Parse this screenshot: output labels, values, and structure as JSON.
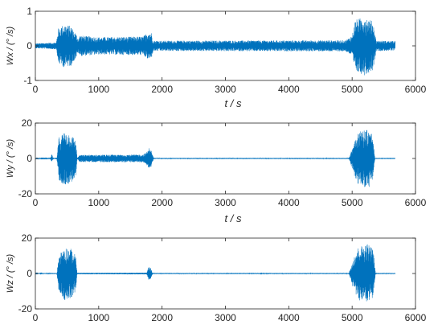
{
  "chart_data": [
    {
      "type": "line",
      "ylabel": "Wx / (° /s)",
      "xlabel": "t / s",
      "xlim": [
        0,
        6000
      ],
      "ylim": [
        -1,
        1
      ],
      "xticks": [
        0,
        1000,
        2000,
        3000,
        4000,
        5000,
        6000
      ],
      "yticks": [
        -1,
        0,
        1
      ],
      "grid": false,
      "series": [
        {
          "color": "#0072BD",
          "envelope": [
            {
              "t": 0,
              "amp": 0.07
            },
            {
              "t": 330,
              "amp": 0.1
            },
            {
              "t": 360,
              "amp": 0.5
            },
            {
              "t": 450,
              "amp": 0.62
            },
            {
              "t": 560,
              "amp": 0.58
            },
            {
              "t": 640,
              "amp": 0.35
            },
            {
              "t": 680,
              "amp": 0.2
            },
            {
              "t": 700,
              "amp": 0.3
            },
            {
              "t": 1000,
              "amp": 0.25
            },
            {
              "t": 1700,
              "amp": 0.27
            },
            {
              "t": 1780,
              "amp": 0.4
            },
            {
              "t": 1830,
              "amp": 0.38
            },
            {
              "t": 1860,
              "amp": 0.15
            },
            {
              "t": 2500,
              "amp": 0.15
            },
            {
              "t": 4900,
              "amp": 0.16
            },
            {
              "t": 5000,
              "amp": 0.3
            },
            {
              "t": 5050,
              "amp": 0.75
            },
            {
              "t": 5200,
              "amp": 0.85
            },
            {
              "t": 5330,
              "amp": 0.7
            },
            {
              "t": 5380,
              "amp": 0.15
            },
            {
              "t": 5680,
              "amp": 0.14
            }
          ]
        }
      ]
    },
    {
      "type": "line",
      "ylabel": "Wy / (° /s)",
      "xlabel": "t / s",
      "xlim": [
        0,
        6000
      ],
      "ylim": [
        -20,
        20
      ],
      "xticks": [
        0,
        1000,
        2000,
        3000,
        4000,
        5000,
        6000
      ],
      "yticks": [
        -20,
        0,
        20
      ],
      "grid": false,
      "series": [
        {
          "color": "#0072BD",
          "envelope": [
            {
              "t": 0,
              "amp": 0.2
            },
            {
              "t": 240,
              "amp": 0.2
            },
            {
              "t": 260,
              "amp": 2.5
            },
            {
              "t": 280,
              "amp": 0.2
            },
            {
              "t": 340,
              "amp": 0.5
            },
            {
              "t": 370,
              "amp": 12
            },
            {
              "t": 450,
              "amp": 15
            },
            {
              "t": 560,
              "amp": 14
            },
            {
              "t": 640,
              "amp": 10
            },
            {
              "t": 660,
              "amp": 0.3
            },
            {
              "t": 700,
              "amp": 2
            },
            {
              "t": 1700,
              "amp": 2.2
            },
            {
              "t": 1770,
              "amp": 4
            },
            {
              "t": 1810,
              "amp": 7
            },
            {
              "t": 1840,
              "amp": 3
            },
            {
              "t": 1870,
              "amp": 0.3
            },
            {
              "t": 4950,
              "amp": 0.3
            },
            {
              "t": 5020,
              "amp": 8
            },
            {
              "t": 5080,
              "amp": 15
            },
            {
              "t": 5250,
              "amp": 17
            },
            {
              "t": 5320,
              "amp": 14
            },
            {
              "t": 5360,
              "amp": 0.3
            },
            {
              "t": 5680,
              "amp": 0.3
            }
          ]
        }
      ]
    },
    {
      "type": "line",
      "ylabel": "Wz / (° /s)",
      "xlabel": "",
      "xlim": [
        0,
        6000
      ],
      "ylim": [
        -20,
        20
      ],
      "xticks": [
        0,
        1000,
        2000,
        3000,
        4000,
        5000,
        6000
      ],
      "yticks": [
        -20,
        0,
        20
      ],
      "grid": false,
      "series": [
        {
          "color": "#0072BD",
          "envelope": [
            {
              "t": 0,
              "amp": 0.2
            },
            {
              "t": 340,
              "amp": 0.3
            },
            {
              "t": 370,
              "amp": 10
            },
            {
              "t": 450,
              "amp": 15
            },
            {
              "t": 560,
              "amp": 14
            },
            {
              "t": 640,
              "amp": 10
            },
            {
              "t": 660,
              "amp": 0.4
            },
            {
              "t": 1760,
              "amp": 0.5
            },
            {
              "t": 1790,
              "amp": 4
            },
            {
              "t": 1820,
              "amp": 3
            },
            {
              "t": 1850,
              "amp": 0.3
            },
            {
              "t": 4950,
              "amp": 0.3
            },
            {
              "t": 5030,
              "amp": 10
            },
            {
              "t": 5100,
              "amp": 15
            },
            {
              "t": 5250,
              "amp": 17
            },
            {
              "t": 5330,
              "amp": 14
            },
            {
              "t": 5370,
              "amp": 0.3
            },
            {
              "t": 5680,
              "amp": 0.3
            }
          ]
        }
      ]
    }
  ]
}
